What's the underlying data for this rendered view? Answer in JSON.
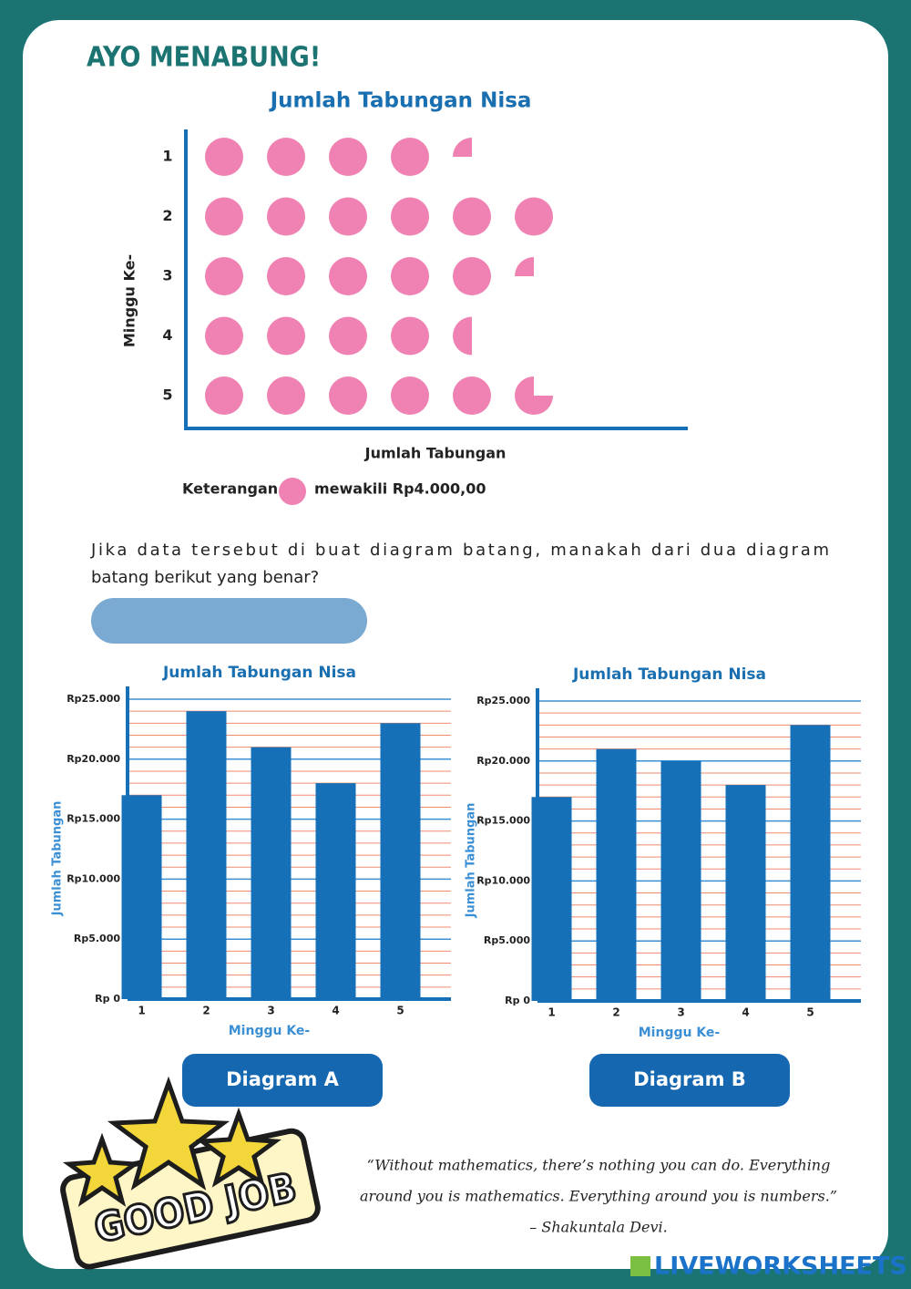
{
  "header": {
    "title": "AYO MENABUNG!"
  },
  "chart_data": [
    {
      "type": "pictograph",
      "title": "Jumlah Tabungan Nisa",
      "categories": [
        "1",
        "2",
        "3",
        "4",
        "5"
      ],
      "values": [
        4.25,
        6,
        5.25,
        4.5,
        5.75
      ],
      "color": "#ef82b2",
      "x_label": "Jumlah Tabungan",
      "y_label": "Minggu Ke-",
      "legend_label": "Keterangan",
      "unit_label": "mewakili Rp4.000,00"
    },
    {
      "type": "bar",
      "title": "Jumlah Tabungan Nisa",
      "categories": [
        "1",
        "2",
        "3",
        "4",
        "5"
      ],
      "values": [
        17000,
        24000,
        21000,
        18000,
        23000
      ],
      "color": "#1570b8",
      "x_label": "Minggu Ke-",
      "y_label": "Jumlah Tabungan",
      "ylim": [
        0,
        25000
      ],
      "yticks": [
        {
          "value": 0,
          "label": "Rp 0"
        },
        {
          "value": 5000,
          "label": "Rp5.000"
        },
        {
          "value": 10000,
          "label": "Rp10.000"
        },
        {
          "value": 15000,
          "label": "Rp15.000"
        },
        {
          "value": 20000,
          "label": "Rp20.000"
        },
        {
          "value": 25000,
          "label": "Rp25.000"
        }
      ],
      "grid": true,
      "grid_color": "#3b8fd4",
      "minor_grid_color": "#f08a6e"
    },
    {
      "type": "bar",
      "title": "Jumlah Tabungan Nisa",
      "categories": [
        "1",
        "2",
        "3",
        "4",
        "5"
      ],
      "values": [
        17000,
        21000,
        20000,
        18000,
        23000
      ],
      "color": "#1570b8",
      "x_label": "Minggu Ke-",
      "y_label": "Jumlah Tabungan",
      "ylim": [
        0,
        25000
      ],
      "yticks": [
        {
          "value": 0,
          "label": "Rp 0"
        },
        {
          "value": 5000,
          "label": "Rp5.000"
        },
        {
          "value": 10000,
          "label": "Rp10.000"
        },
        {
          "value": 15000,
          "label": "Rp15.000"
        },
        {
          "value": 20000,
          "label": "Rp20.000"
        },
        {
          "value": 25000,
          "label": "Rp25.000"
        }
      ],
      "grid": true,
      "grid_color": "#3b8fd4",
      "minor_grid_color": "#f08a6e"
    }
  ],
  "question": {
    "lines": [
      "Jika data tersebut di buat diagram batang, manakah dari dua diagram",
      "batang berikut yang benar?"
    ]
  },
  "buttons": [
    "Diagram A",
    "Diagram B"
  ],
  "quote": {
    "lines": [
      "“Without mathematics, there’s nothing you can do. Everything",
      "around you is mathematics. Everything around you is numbers.”",
      "– Shakuntala Devi."
    ]
  },
  "badge": {
    "text": "GOOD JOB"
  },
  "logo": {
    "text": "LIVEWORKSHEETS"
  }
}
